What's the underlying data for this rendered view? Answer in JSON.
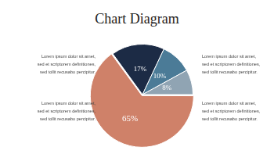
{
  "chart_data": {
    "type": "pie",
    "title": "Chart Diagram",
    "values": [
      17,
      10,
      8,
      65
    ],
    "value_labels": [
      "17%",
      "10%",
      "8%",
      "65%"
    ],
    "colors": [
      "#1c2b45",
      "#4b7b97",
      "#90a4b3",
      "#cf8169"
    ],
    "data_labels": true,
    "annotations": [
      [
        "Lorem ipsum dolor sit amet,",
        "sed et scriptorem definitiones,",
        "sed tollit recusabo percipitur."
      ],
      [
        "Lorem ipsum dolor sit amet,",
        "sed et scriptorem definitiones,",
        "sed tollit recusabo percipitur."
      ],
      [
        "Lorem ipsum dolor sit amet,",
        "sed et scriptorem definitiones,",
        "sed tollit recusabo percipitur."
      ],
      [
        "Lorem ipsum dolor sit amet,",
        "sed et scriptorem definitiones,",
        "sed tollit recusabo percipitur."
      ]
    ]
  }
}
